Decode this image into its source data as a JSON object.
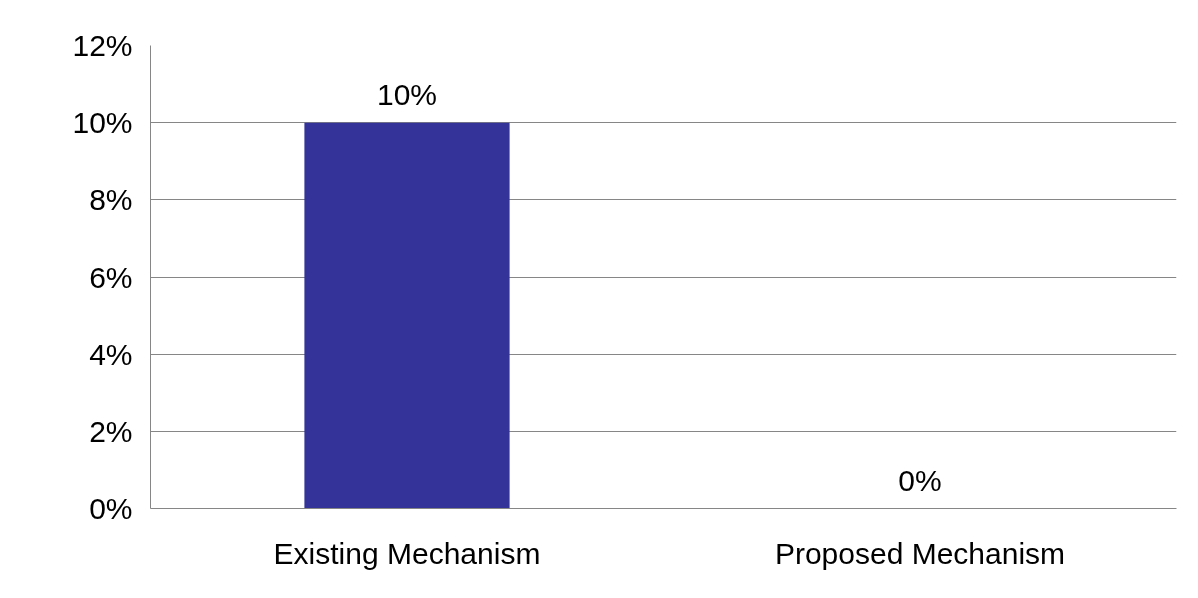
{
  "chart_data": {
    "type": "bar",
    "categories": [
      "Existing Mechanism",
      "Proposed Mechanism"
    ],
    "values": [
      10,
      0
    ],
    "value_labels": [
      "10%",
      "0%"
    ],
    "color": "#333399",
    "ylim": [
      0,
      12
    ],
    "yticks": [
      {
        "value": 0,
        "label": "0%"
      },
      {
        "value": 2,
        "label": "2%"
      },
      {
        "value": 4,
        "label": "4%"
      },
      {
        "value": 6,
        "label": "6%"
      },
      {
        "value": 8,
        "label": "8%"
      },
      {
        "value": 10,
        "label": "10%"
      },
      {
        "value": 12,
        "label": "12%"
      }
    ],
    "grid": "y"
  }
}
